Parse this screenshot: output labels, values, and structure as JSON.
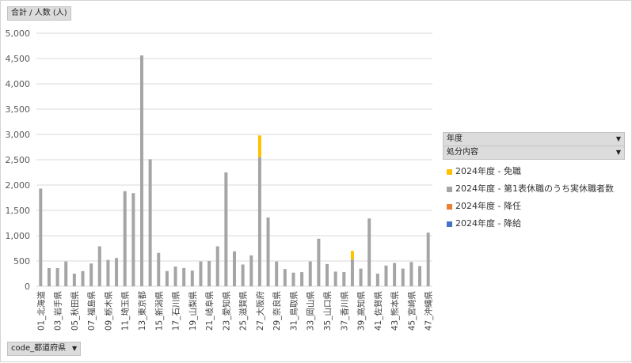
{
  "field_buttons": {
    "values_field": "合計 / 人数 (人)",
    "axis_field": "code_都道府県",
    "legend_field_year": "年度",
    "legend_field_type": "処分内容"
  },
  "icons": {
    "dropdown": "chevron-down-icon"
  },
  "colors": {
    "gray": "#a5a5a5",
    "yellow": "#ffc000",
    "orange": "#ed7d31",
    "blue": "#4472c4",
    "grid": "#d9d9d9"
  },
  "chart_data": {
    "type": "bar",
    "stacked": true,
    "title": "",
    "xlabel": "",
    "ylabel": "",
    "ylim": [
      0,
      5000
    ],
    "yticks": [
      0,
      500,
      1000,
      1500,
      2000,
      2500,
      3000,
      3500,
      4000,
      4500,
      5000
    ],
    "ytick_labels": [
      "0",
      "500",
      "1,000",
      "1,500",
      "2,000",
      "2,500",
      "3,000",
      "3,500",
      "4,000",
      "4,500",
      "5,000"
    ],
    "grid": true,
    "legend_position": "right",
    "categories": [
      "01_北海道",
      "02_青森県",
      "03_岩手県",
      "04_宮城県",
      "05_秋田県",
      "06_山形県",
      "07_福島県",
      "08_茨城県",
      "09_栃木県",
      "10_群馬県",
      "11_埼玉県",
      "12_千葉県",
      "13_東京都",
      "14_神奈川県",
      "15_新潟県",
      "16_富山県",
      "17_石川県",
      "18_福井県",
      "19_山梨県",
      "20_長野県",
      "21_岐阜県",
      "22_静岡県",
      "23_愛知県",
      "24_三重県",
      "25_滋賀県",
      "26_京都府",
      "27_大阪府",
      "28_兵庫県",
      "29_奈良県",
      "30_和歌山県",
      "31_鳥取県",
      "32_島根県",
      "33_岡山県",
      "34_広島県",
      "35_山口県",
      "36_徳島県",
      "37_香川県",
      "38_愛媛県",
      "39_高知県",
      "40_福岡県",
      "41_佐賀県",
      "42_長崎県",
      "43_熊本県",
      "44_大分県",
      "45_宮崎県",
      "46_鹿児島県",
      "47_沖縄県"
    ],
    "x_tick_labels_shown": [
      "01_北海道",
      "03_岩手県",
      "05_秋田県",
      "07_福島県",
      "09_栃木県",
      "11_埼玉県",
      "13_東京都",
      "15_新潟県",
      "17_石川県",
      "19_山梨県",
      "21_岐阜県",
      "23_愛知県",
      "25_滋賀県",
      "27_大阪府",
      "29_奈良県",
      "31_鳥取県",
      "33_岡山県",
      "35_山口県",
      "37_香川県",
      "39_高知県",
      "41_佐賀県",
      "43_熊本県",
      "45_宮崎県",
      "47_沖縄県"
    ],
    "series": [
      {
        "name": "2024年度 - 降給",
        "color": "#4472c4",
        "values": [
          0,
          0,
          0,
          0,
          0,
          0,
          0,
          0,
          0,
          0,
          0,
          0,
          0,
          0,
          0,
          0,
          0,
          0,
          0,
          0,
          0,
          0,
          0,
          0,
          0,
          0,
          0,
          0,
          0,
          0,
          0,
          0,
          0,
          0,
          0,
          0,
          0,
          0,
          0,
          0,
          0,
          0,
          0,
          0,
          0,
          0,
          0
        ]
      },
      {
        "name": "2024年度 - 降任",
        "color": "#ed7d31",
        "values": [
          0,
          0,
          0,
          0,
          0,
          0,
          0,
          0,
          0,
          0,
          0,
          0,
          0,
          0,
          0,
          0,
          0,
          0,
          0,
          0,
          0,
          0,
          0,
          0,
          0,
          0,
          0,
          0,
          0,
          0,
          0,
          0,
          0,
          0,
          0,
          0,
          0,
          0,
          0,
          0,
          0,
          0,
          0,
          0,
          0,
          0,
          0
        ]
      },
      {
        "name": "2024年度 - 第1表休職のうち実休職者数",
        "color": "#a5a5a5",
        "values": [
          1930,
          360,
          360,
          490,
          250,
          300,
          450,
          790,
          520,
          560,
          1880,
          1840,
          4560,
          2510,
          660,
          300,
          390,
          360,
          310,
          490,
          500,
          790,
          2250,
          690,
          430,
          610,
          2550,
          1360,
          490,
          340,
          270,
          280,
          490,
          940,
          440,
          290,
          280,
          530,
          350,
          1340,
          250,
          410,
          460,
          350,
          480,
          400,
          1060
        ]
      },
      {
        "name": "2024年度 - 免職",
        "color": "#ffc000",
        "values": [
          0,
          0,
          0,
          0,
          0,
          0,
          0,
          0,
          0,
          0,
          0,
          0,
          0,
          0,
          0,
          0,
          0,
          0,
          0,
          0,
          0,
          0,
          0,
          0,
          0,
          0,
          430,
          0,
          0,
          0,
          0,
          0,
          0,
          0,
          0,
          0,
          0,
          170,
          0,
          0,
          0,
          0,
          0,
          0,
          0,
          0,
          0
        ]
      }
    ],
    "legend_order": [
      "2024年度 - 免職",
      "2024年度 - 第1表休職のうち実休職者数",
      "2024年度 - 降任",
      "2024年度 - 降給"
    ]
  }
}
